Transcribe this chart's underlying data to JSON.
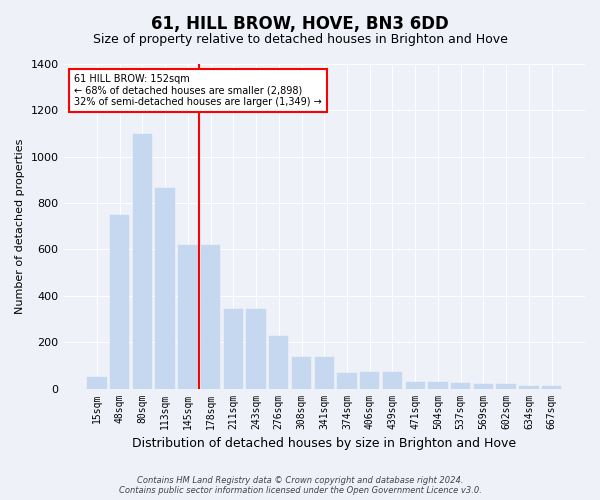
{
  "title": "61, HILL BROW, HOVE, BN3 6DD",
  "subtitle": "Size of property relative to detached houses in Brighton and Hove",
  "xlabel": "Distribution of detached houses by size in Brighton and Hove",
  "ylabel": "Number of detached properties",
  "footer_line1": "Contains HM Land Registry data © Crown copyright and database right 2024.",
  "footer_line2": "Contains public sector information licensed under the Open Government Licence v3.0.",
  "categories": [
    "15sqm",
    "48sqm",
    "80sqm",
    "113sqm",
    "145sqm",
    "178sqm",
    "211sqm",
    "243sqm",
    "276sqm",
    "308sqm",
    "341sqm",
    "374sqm",
    "406sqm",
    "439sqm",
    "471sqm",
    "504sqm",
    "537sqm",
    "569sqm",
    "602sqm",
    "634sqm",
    "667sqm"
  ],
  "values": [
    50,
    750,
    1100,
    865,
    620,
    620,
    345,
    345,
    225,
    135,
    135,
    65,
    70,
    70,
    30,
    30,
    25,
    18,
    18,
    10,
    10
  ],
  "bar_color": "#c5d8f0",
  "bar_edgecolor": "#c5d8f0",
  "vline_color": "red",
  "vline_pos": 4.5,
  "annotation_title": "61 HILL BROW: 152sqm",
  "annotation_line1": "← 68% of detached houses are smaller (2,898)",
  "annotation_line2": "32% of semi-detached houses are larger (1,349) →",
  "annotation_box_color": "red",
  "ylim": [
    0,
    1400
  ],
  "yticks": [
    0,
    200,
    400,
    600,
    800,
    1000,
    1200,
    1400
  ],
  "bg_color": "#eef2f8",
  "plot_bg_color": "#eef2f8",
  "grid_color": "white",
  "title_fontsize": 12,
  "subtitle_fontsize": 9,
  "ylabel_fontsize": 8,
  "xlabel_fontsize": 9,
  "tick_fontsize": 7,
  "footer_fontsize": 6
}
